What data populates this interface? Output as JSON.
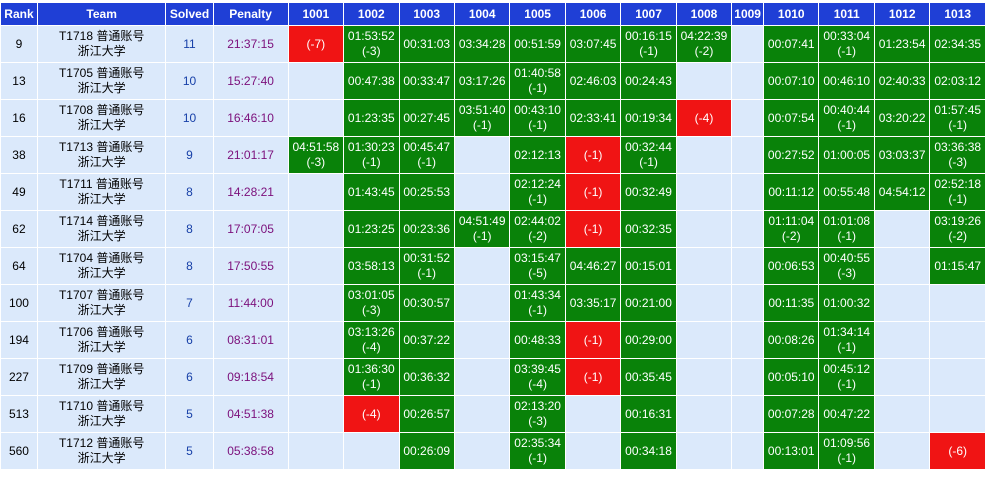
{
  "columns": {
    "rank": "Rank",
    "team": "Team",
    "solved": "Solved",
    "penalty": "Penalty",
    "problems": [
      "1001",
      "1002",
      "1003",
      "1004",
      "1005",
      "1006",
      "1007",
      "1008",
      "1009",
      "1010",
      "1011",
      "1012",
      "1013"
    ]
  },
  "colors": {
    "header_bg": "#1f3fd6",
    "accepted_bg": "#098209",
    "wrong_bg": "#f01414",
    "empty_bg": "#dbe9fb"
  },
  "rows": [
    {
      "rank": "9",
      "team_id": "T1718 普通账号",
      "school": "浙江大学",
      "solved": "11",
      "penalty": "21:37:15",
      "cells": [
        {
          "s": "wa",
          "t": "",
          "a": "(-7)"
        },
        {
          "s": "ac",
          "t": "01:53:52",
          "a": "(-3)"
        },
        {
          "s": "ac",
          "t": "00:31:03",
          "a": ""
        },
        {
          "s": "ac",
          "t": "03:34:28",
          "a": ""
        },
        {
          "s": "ac",
          "t": "00:51:59",
          "a": ""
        },
        {
          "s": "ac",
          "t": "03:07:45",
          "a": ""
        },
        {
          "s": "ac",
          "t": "00:16:15",
          "a": "(-1)"
        },
        {
          "s": "ac",
          "t": "04:22:39",
          "a": "(-2)"
        },
        {
          "s": "none",
          "t": "",
          "a": ""
        },
        {
          "s": "ac",
          "t": "00:07:41",
          "a": ""
        },
        {
          "s": "ac",
          "t": "00:33:04",
          "a": "(-1)"
        },
        {
          "s": "ac",
          "t": "01:23:54",
          "a": ""
        },
        {
          "s": "ac",
          "t": "02:34:35",
          "a": ""
        }
      ]
    },
    {
      "rank": "13",
      "team_id": "T1705 普通账号",
      "school": "浙江大学",
      "solved": "10",
      "penalty": "15:27:40",
      "cells": [
        {
          "s": "none",
          "t": "",
          "a": ""
        },
        {
          "s": "ac",
          "t": "00:47:38",
          "a": ""
        },
        {
          "s": "ac",
          "t": "00:33:47",
          "a": ""
        },
        {
          "s": "ac",
          "t": "03:17:26",
          "a": ""
        },
        {
          "s": "ac",
          "t": "01:40:58",
          "a": "(-1)"
        },
        {
          "s": "ac",
          "t": "02:46:03",
          "a": ""
        },
        {
          "s": "ac",
          "t": "00:24:43",
          "a": ""
        },
        {
          "s": "none",
          "t": "",
          "a": ""
        },
        {
          "s": "none",
          "t": "",
          "a": ""
        },
        {
          "s": "ac",
          "t": "00:07:10",
          "a": ""
        },
        {
          "s": "ac",
          "t": "00:46:10",
          "a": ""
        },
        {
          "s": "ac",
          "t": "02:40:33",
          "a": ""
        },
        {
          "s": "ac",
          "t": "02:03:12",
          "a": ""
        }
      ]
    },
    {
      "rank": "16",
      "team_id": "T1708 普通账号",
      "school": "浙江大学",
      "solved": "10",
      "penalty": "16:46:10",
      "cells": [
        {
          "s": "none",
          "t": "",
          "a": ""
        },
        {
          "s": "ac",
          "t": "01:23:35",
          "a": ""
        },
        {
          "s": "ac",
          "t": "00:27:45",
          "a": ""
        },
        {
          "s": "ac",
          "t": "03:51:40",
          "a": "(-1)"
        },
        {
          "s": "ac",
          "t": "00:43:10",
          "a": "(-1)"
        },
        {
          "s": "ac",
          "t": "02:33:41",
          "a": ""
        },
        {
          "s": "ac",
          "t": "00:19:34",
          "a": ""
        },
        {
          "s": "wa",
          "t": "",
          "a": "(-4)"
        },
        {
          "s": "none",
          "t": "",
          "a": ""
        },
        {
          "s": "ac",
          "t": "00:07:54",
          "a": ""
        },
        {
          "s": "ac",
          "t": "00:40:44",
          "a": "(-1)"
        },
        {
          "s": "ac",
          "t": "03:20:22",
          "a": ""
        },
        {
          "s": "ac",
          "t": "01:57:45",
          "a": "(-1)"
        }
      ]
    },
    {
      "rank": "38",
      "team_id": "T1713 普通账号",
      "school": "浙江大学",
      "solved": "9",
      "penalty": "21:01:17",
      "cells": [
        {
          "s": "ac",
          "t": "04:51:58",
          "a": "(-3)"
        },
        {
          "s": "ac",
          "t": "01:30:23",
          "a": "(-1)"
        },
        {
          "s": "ac",
          "t": "00:45:47",
          "a": "(-1)"
        },
        {
          "s": "none",
          "t": "",
          "a": ""
        },
        {
          "s": "ac",
          "t": "02:12:13",
          "a": ""
        },
        {
          "s": "wa",
          "t": "",
          "a": "(-1)"
        },
        {
          "s": "ac",
          "t": "00:32:44",
          "a": "(-1)"
        },
        {
          "s": "none",
          "t": "",
          "a": ""
        },
        {
          "s": "none",
          "t": "",
          "a": ""
        },
        {
          "s": "ac",
          "t": "00:27:52",
          "a": ""
        },
        {
          "s": "ac",
          "t": "01:00:05",
          "a": ""
        },
        {
          "s": "ac",
          "t": "03:03:37",
          "a": ""
        },
        {
          "s": "ac",
          "t": "03:36:38",
          "a": "(-3)"
        }
      ]
    },
    {
      "rank": "49",
      "team_id": "T1711 普通账号",
      "school": "浙江大学",
      "solved": "8",
      "penalty": "14:28:21",
      "cells": [
        {
          "s": "none",
          "t": "",
          "a": ""
        },
        {
          "s": "ac",
          "t": "01:43:45",
          "a": ""
        },
        {
          "s": "ac",
          "t": "00:25:53",
          "a": ""
        },
        {
          "s": "none",
          "t": "",
          "a": ""
        },
        {
          "s": "ac",
          "t": "02:12:24",
          "a": "(-1)"
        },
        {
          "s": "wa",
          "t": "",
          "a": "(-1)"
        },
        {
          "s": "ac",
          "t": "00:32:49",
          "a": ""
        },
        {
          "s": "none",
          "t": "",
          "a": ""
        },
        {
          "s": "none",
          "t": "",
          "a": ""
        },
        {
          "s": "ac",
          "t": "00:11:12",
          "a": ""
        },
        {
          "s": "ac",
          "t": "00:55:48",
          "a": ""
        },
        {
          "s": "ac",
          "t": "04:54:12",
          "a": ""
        },
        {
          "s": "ac",
          "t": "02:52:18",
          "a": "(-1)"
        }
      ]
    },
    {
      "rank": "62",
      "team_id": "T1714 普通账号",
      "school": "浙江大学",
      "solved": "8",
      "penalty": "17:07:05",
      "cells": [
        {
          "s": "none",
          "t": "",
          "a": ""
        },
        {
          "s": "ac",
          "t": "01:23:25",
          "a": ""
        },
        {
          "s": "ac",
          "t": "00:23:36",
          "a": ""
        },
        {
          "s": "ac",
          "t": "04:51:49",
          "a": "(-1)"
        },
        {
          "s": "ac",
          "t": "02:44:02",
          "a": "(-2)"
        },
        {
          "s": "wa",
          "t": "",
          "a": "(-1)"
        },
        {
          "s": "ac",
          "t": "00:32:35",
          "a": ""
        },
        {
          "s": "none",
          "t": "",
          "a": ""
        },
        {
          "s": "none",
          "t": "",
          "a": ""
        },
        {
          "s": "ac",
          "t": "01:11:04",
          "a": "(-2)"
        },
        {
          "s": "ac",
          "t": "01:01:08",
          "a": "(-1)"
        },
        {
          "s": "none",
          "t": "",
          "a": ""
        },
        {
          "s": "ac",
          "t": "03:19:26",
          "a": "(-2)"
        }
      ]
    },
    {
      "rank": "64",
      "team_id": "T1704 普通账号",
      "school": "浙江大学",
      "solved": "8",
      "penalty": "17:50:55",
      "cells": [
        {
          "s": "none",
          "t": "",
          "a": ""
        },
        {
          "s": "ac",
          "t": "03:58:13",
          "a": ""
        },
        {
          "s": "ac",
          "t": "00:31:52",
          "a": "(-1)"
        },
        {
          "s": "none",
          "t": "",
          "a": ""
        },
        {
          "s": "ac",
          "t": "03:15:47",
          "a": "(-5)"
        },
        {
          "s": "ac",
          "t": "04:46:27",
          "a": ""
        },
        {
          "s": "ac",
          "t": "00:15:01",
          "a": ""
        },
        {
          "s": "none",
          "t": "",
          "a": ""
        },
        {
          "s": "none",
          "t": "",
          "a": ""
        },
        {
          "s": "ac",
          "t": "00:06:53",
          "a": ""
        },
        {
          "s": "ac",
          "t": "00:40:55",
          "a": "(-3)"
        },
        {
          "s": "none",
          "t": "",
          "a": ""
        },
        {
          "s": "ac",
          "t": "01:15:47",
          "a": ""
        }
      ]
    },
    {
      "rank": "100",
      "team_id": "T1707 普通账号",
      "school": "浙江大学",
      "solved": "7",
      "penalty": "11:44:00",
      "cells": [
        {
          "s": "none",
          "t": "",
          "a": ""
        },
        {
          "s": "ac",
          "t": "03:01:05",
          "a": "(-3)"
        },
        {
          "s": "ac",
          "t": "00:30:57",
          "a": ""
        },
        {
          "s": "none",
          "t": "",
          "a": ""
        },
        {
          "s": "ac",
          "t": "01:43:34",
          "a": "(-1)"
        },
        {
          "s": "ac",
          "t": "03:35:17",
          "a": ""
        },
        {
          "s": "ac",
          "t": "00:21:00",
          "a": ""
        },
        {
          "s": "none",
          "t": "",
          "a": ""
        },
        {
          "s": "none",
          "t": "",
          "a": ""
        },
        {
          "s": "ac",
          "t": "00:11:35",
          "a": ""
        },
        {
          "s": "ac",
          "t": "01:00:32",
          "a": ""
        },
        {
          "s": "none",
          "t": "",
          "a": ""
        },
        {
          "s": "none",
          "t": "",
          "a": ""
        }
      ]
    },
    {
      "rank": "194",
      "team_id": "T1706 普通账号",
      "school": "浙江大学",
      "solved": "6",
      "penalty": "08:31:01",
      "cells": [
        {
          "s": "none",
          "t": "",
          "a": ""
        },
        {
          "s": "ac",
          "t": "03:13:26",
          "a": "(-4)"
        },
        {
          "s": "ac",
          "t": "00:37:22",
          "a": ""
        },
        {
          "s": "none",
          "t": "",
          "a": ""
        },
        {
          "s": "ac",
          "t": "00:48:33",
          "a": ""
        },
        {
          "s": "wa",
          "t": "",
          "a": "(-1)"
        },
        {
          "s": "ac",
          "t": "00:29:00",
          "a": ""
        },
        {
          "s": "none",
          "t": "",
          "a": ""
        },
        {
          "s": "none",
          "t": "",
          "a": ""
        },
        {
          "s": "ac",
          "t": "00:08:26",
          "a": ""
        },
        {
          "s": "ac",
          "t": "01:34:14",
          "a": "(-1)"
        },
        {
          "s": "none",
          "t": "",
          "a": ""
        },
        {
          "s": "none",
          "t": "",
          "a": ""
        }
      ]
    },
    {
      "rank": "227",
      "team_id": "T1709 普通账号",
      "school": "浙江大学",
      "solved": "6",
      "penalty": "09:18:54",
      "cells": [
        {
          "s": "none",
          "t": "",
          "a": ""
        },
        {
          "s": "ac",
          "t": "01:36:30",
          "a": "(-1)"
        },
        {
          "s": "ac",
          "t": "00:36:32",
          "a": ""
        },
        {
          "s": "none",
          "t": "",
          "a": ""
        },
        {
          "s": "ac",
          "t": "03:39:45",
          "a": "(-4)"
        },
        {
          "s": "wa",
          "t": "",
          "a": "(-1)"
        },
        {
          "s": "ac",
          "t": "00:35:45",
          "a": ""
        },
        {
          "s": "none",
          "t": "",
          "a": ""
        },
        {
          "s": "none",
          "t": "",
          "a": ""
        },
        {
          "s": "ac",
          "t": "00:05:10",
          "a": ""
        },
        {
          "s": "ac",
          "t": "00:45:12",
          "a": "(-1)"
        },
        {
          "s": "none",
          "t": "",
          "a": ""
        },
        {
          "s": "none",
          "t": "",
          "a": ""
        }
      ]
    },
    {
      "rank": "513",
      "team_id": "T1710 普通账号",
      "school": "浙江大学",
      "solved": "5",
      "penalty": "04:51:38",
      "cells": [
        {
          "s": "none",
          "t": "",
          "a": ""
        },
        {
          "s": "wa",
          "t": "",
          "a": "(-4)"
        },
        {
          "s": "ac",
          "t": "00:26:57",
          "a": ""
        },
        {
          "s": "none",
          "t": "",
          "a": ""
        },
        {
          "s": "ac",
          "t": "02:13:20",
          "a": "(-3)"
        },
        {
          "s": "none",
          "t": "",
          "a": ""
        },
        {
          "s": "ac",
          "t": "00:16:31",
          "a": ""
        },
        {
          "s": "none",
          "t": "",
          "a": ""
        },
        {
          "s": "none",
          "t": "",
          "a": ""
        },
        {
          "s": "ac",
          "t": "00:07:28",
          "a": ""
        },
        {
          "s": "ac",
          "t": "00:47:22",
          "a": ""
        },
        {
          "s": "none",
          "t": "",
          "a": ""
        },
        {
          "s": "none",
          "t": "",
          "a": ""
        }
      ]
    },
    {
      "rank": "560",
      "team_id": "T1712 普通账号",
      "school": "浙江大学",
      "solved": "5",
      "penalty": "05:38:58",
      "cells": [
        {
          "s": "none",
          "t": "",
          "a": ""
        },
        {
          "s": "none",
          "t": "",
          "a": ""
        },
        {
          "s": "ac",
          "t": "00:26:09",
          "a": ""
        },
        {
          "s": "none",
          "t": "",
          "a": ""
        },
        {
          "s": "ac",
          "t": "02:35:34",
          "a": "(-1)"
        },
        {
          "s": "none",
          "t": "",
          "a": ""
        },
        {
          "s": "ac",
          "t": "00:34:18",
          "a": ""
        },
        {
          "s": "none",
          "t": "",
          "a": ""
        },
        {
          "s": "none",
          "t": "",
          "a": ""
        },
        {
          "s": "ac",
          "t": "00:13:01",
          "a": ""
        },
        {
          "s": "ac",
          "t": "01:09:56",
          "a": "(-1)"
        },
        {
          "s": "none",
          "t": "",
          "a": ""
        },
        {
          "s": "wa",
          "t": "",
          "a": "(-6)"
        }
      ]
    }
  ]
}
